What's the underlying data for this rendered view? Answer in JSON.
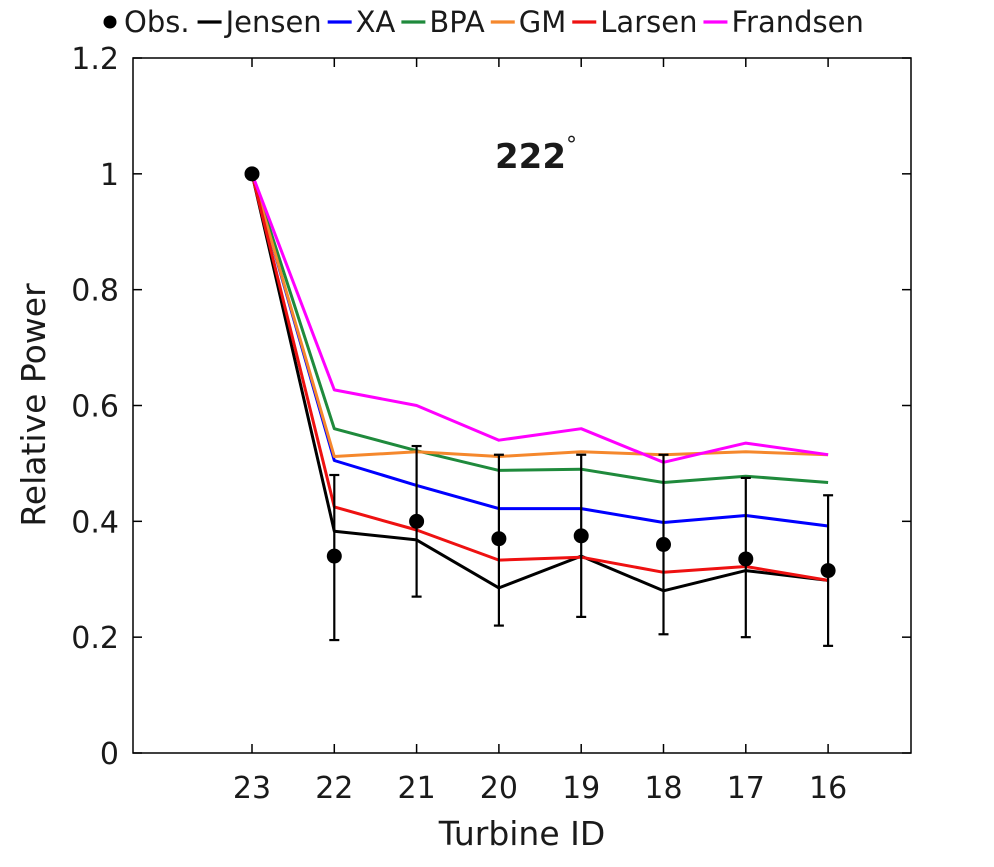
{
  "chart_data": {
    "type": "line",
    "title": "",
    "annotation": "222",
    "annotation_sup": "°",
    "xlabel": "Turbine ID",
    "ylabel": "Relative Power",
    "categories": [
      "23",
      "22",
      "21",
      "20",
      "19",
      "18",
      "17",
      "16"
    ],
    "ylim": [
      0,
      1.2
    ],
    "yticks": [
      "0",
      "0.2",
      "0.4",
      "0.6",
      "0.8",
      "1",
      "1.2"
    ],
    "observed": {
      "name": "Obs.",
      "color": "#000000",
      "values": [
        1.0,
        0.34,
        0.4,
        0.37,
        0.375,
        0.36,
        0.335,
        0.315
      ],
      "err_low": [
        1.0,
        0.195,
        0.27,
        0.22,
        0.235,
        0.205,
        0.2,
        0.185
      ],
      "err_high": [
        1.0,
        0.48,
        0.53,
        0.515,
        0.515,
        0.515,
        0.475,
        0.445
      ]
    },
    "series": [
      {
        "name": "Jensen",
        "color": "#000000",
        "values": [
          1.0,
          0.383,
          0.368,
          0.285,
          0.34,
          0.28,
          0.315,
          0.298
        ]
      },
      {
        "name": "XA",
        "color": "#0000ff",
        "values": [
          1.0,
          0.505,
          0.462,
          0.422,
          0.422,
          0.398,
          0.41,
          0.392
        ]
      },
      {
        "name": "BPA",
        "color": "#1f8a3c",
        "values": [
          1.0,
          0.56,
          0.522,
          0.488,
          0.49,
          0.467,
          0.478,
          0.467
        ]
      },
      {
        "name": "GM",
        "color": "#f5882d",
        "values": [
          1.0,
          0.512,
          0.52,
          0.512,
          0.52,
          0.515,
          0.52,
          0.515
        ]
      },
      {
        "name": "Larsen",
        "color": "#ee1111",
        "values": [
          1.0,
          0.425,
          0.385,
          0.333,
          0.338,
          0.312,
          0.322,
          0.298
        ]
      },
      {
        "name": "Frandsen",
        "color": "#ff00ff",
        "values": [
          1.0,
          0.627,
          0.6,
          0.54,
          0.56,
          0.502,
          0.535,
          0.515
        ]
      }
    ],
    "legend_position": "top",
    "grid": false
  }
}
